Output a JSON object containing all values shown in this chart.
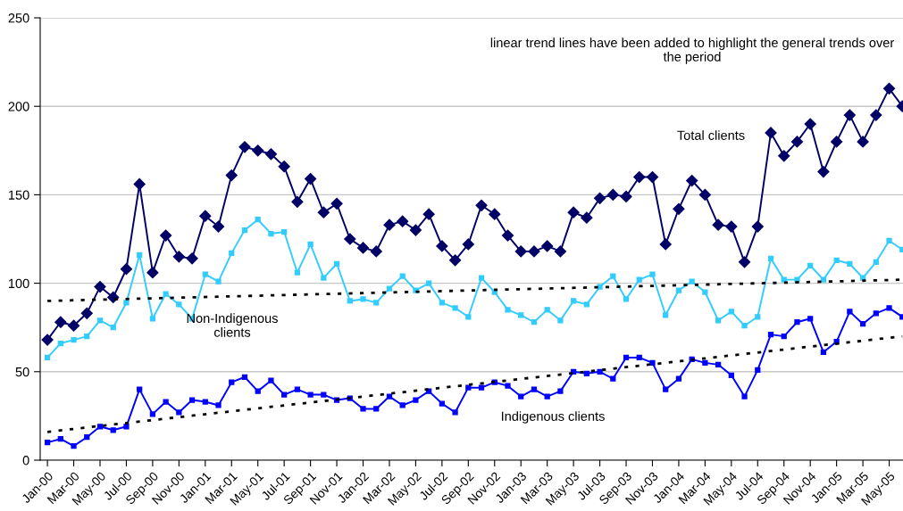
{
  "chart_data": {
    "type": "line",
    "categories": [
      "Jan-00",
      null,
      "Mar-00",
      null,
      "May-00",
      null,
      "Jul-00",
      null,
      "Sep-00",
      null,
      "Nov-00",
      null,
      "Jan-01",
      null,
      "Mar-01",
      null,
      "May-01",
      null,
      "Jul-01",
      null,
      "Sep-01",
      null,
      "Nov-01",
      null,
      "Jan-02",
      null,
      "Mar-02",
      null,
      "May-02",
      null,
      "Jul-02",
      null,
      "Sep-02",
      null,
      "Nov-02",
      null,
      "Jan-03",
      null,
      "Mar-03",
      null,
      "May-03",
      null,
      "Jul-03",
      null,
      "Sep-03",
      null,
      "Nov-03",
      null,
      "Jan-04",
      null,
      "Mar-04",
      null,
      "May-04",
      null,
      "Jul-04",
      null,
      "Sep-04",
      null,
      "Nov-04",
      null,
      "Jan-05",
      null,
      "Mar-05",
      null,
      "May-05",
      null
    ],
    "series": [
      {
        "name": "Total clients",
        "color": "#000066",
        "marker": "diamond",
        "values": [
          68,
          78,
          76,
          83,
          98,
          92,
          108,
          156,
          106,
          127,
          115,
          114,
          138,
          132,
          161,
          177,
          175,
          173,
          166,
          146,
          159,
          140,
          145,
          125,
          120,
          118,
          133,
          135,
          130,
          139,
          121,
          113,
          122,
          144,
          139,
          127,
          118,
          118,
          121,
          118,
          140,
          137,
          148,
          150,
          149,
          160,
          160,
          122,
          142,
          158,
          150,
          133,
          132,
          112,
          132,
          185,
          172,
          180,
          190,
          163,
          180,
          195,
          180,
          195,
          210,
          200
        ]
      },
      {
        "name": "Non-Indigenous clients",
        "color": "#33ccff",
        "marker": "square",
        "values": [
          58,
          66,
          68,
          70,
          79,
          75,
          89,
          116,
          80,
          94,
          88,
          80,
          105,
          101,
          117,
          130,
          136,
          128,
          129,
          106,
          122,
          103,
          111,
          90,
          91,
          89,
          97,
          104,
          96,
          100,
          89,
          86,
          81,
          103,
          95,
          85,
          82,
          78,
          85,
          79,
          90,
          88,
          98,
          104,
          91,
          102,
          105,
          82,
          96,
          101,
          95,
          79,
          84,
          76,
          81,
          114,
          102,
          102,
          110,
          102,
          113,
          111,
          103,
          112,
          124,
          119
        ]
      },
      {
        "name": "Indigenous clients",
        "color": "#0000ff",
        "marker": "square",
        "values": [
          10,
          12,
          8,
          13,
          19,
          17,
          19,
          40,
          26,
          33,
          27,
          34,
          33,
          31,
          44,
          47,
          39,
          45,
          37,
          40,
          37,
          37,
          34,
          35,
          29,
          29,
          36,
          31,
          34,
          39,
          32,
          27,
          41,
          41,
          44,
          42,
          36,
          40,
          36,
          39,
          50,
          49,
          50,
          46,
          58,
          58,
          55,
          40,
          46,
          57,
          55,
          54,
          48,
          36,
          51,
          71,
          70,
          78,
          80,
          61,
          67,
          84,
          77,
          83,
          86,
          81
        ]
      },
      {
        "color": "#000000",
        "marker": "none",
        "line_style": "dotted",
        "values": [
          90,
          null,
          null,
          null,
          null,
          null,
          null,
          null,
          null,
          null,
          null,
          null,
          null,
          null,
          null,
          null,
          null,
          null,
          null,
          null,
          null,
          null,
          null,
          null,
          null,
          null,
          null,
          null,
          null,
          null,
          null,
          null,
          null,
          null,
          null,
          null,
          null,
          null,
          null,
          null,
          null,
          null,
          null,
          null,
          null,
          null,
          null,
          null,
          null,
          null,
          null,
          null,
          null,
          null,
          null,
          null,
          null,
          null,
          null,
          null,
          null,
          null,
          null,
          null,
          null,
          102
        ]
      },
      {
        "color": "#000000",
        "marker": "none",
        "line_style": "dotted",
        "values": [
          16,
          null,
          null,
          null,
          null,
          null,
          null,
          null,
          null,
          null,
          null,
          null,
          null,
          null,
          null,
          null,
          null,
          null,
          null,
          null,
          null,
          null,
          null,
          null,
          null,
          null,
          null,
          null,
          null,
          null,
          null,
          null,
          null,
          null,
          null,
          null,
          null,
          null,
          null,
          null,
          null,
          null,
          null,
          null,
          null,
          null,
          null,
          null,
          null,
          null,
          null,
          null,
          null,
          null,
          null,
          null,
          null,
          null,
          null,
          null,
          null,
          null,
          null,
          null,
          null,
          70
        ]
      }
    ],
    "ylim": [
      0,
      250
    ],
    "yticks": [
      0,
      50,
      100,
      150,
      200,
      250
    ],
    "grid": "y",
    "annotations": [
      "linear trend lines have been added to highlight the general trends over the period"
    ]
  }
}
